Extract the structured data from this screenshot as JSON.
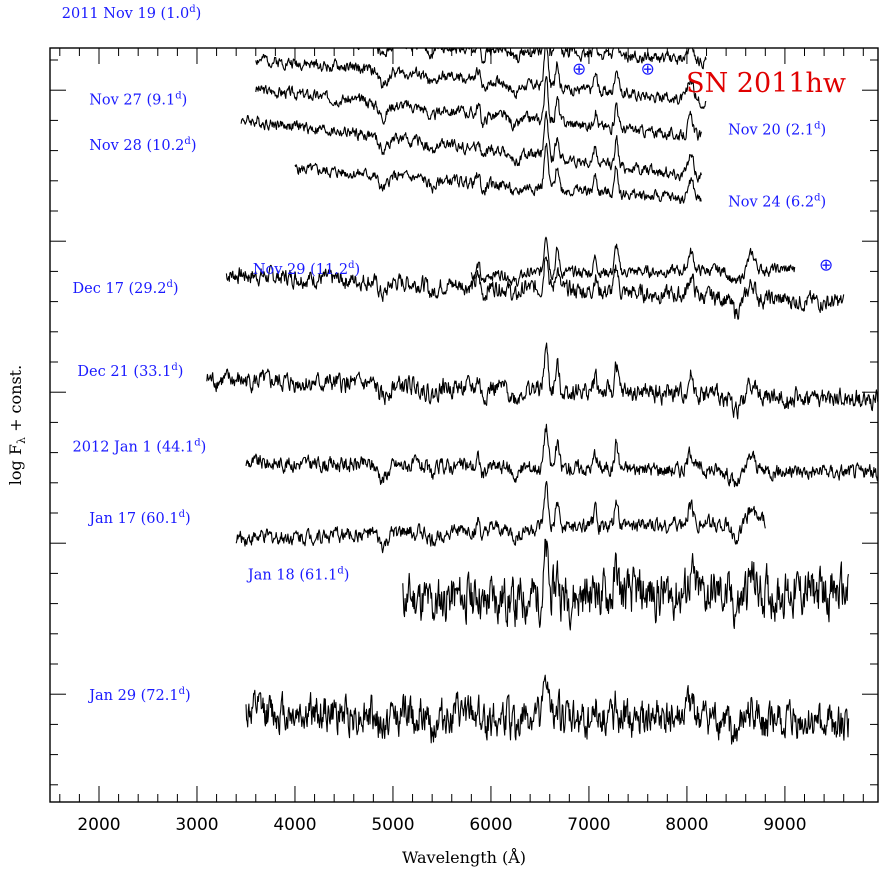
{
  "chart_data": {
    "type": "line",
    "title": "SN 2011hw",
    "xlabel": "Wavelength (Å)",
    "ylabel_main": "log F",
    "ylabel_sub": "λ",
    "ylabel_tail": " + const.",
    "xlim": [
      1500,
      9950
    ],
    "xticks": [
      2000,
      3000,
      4000,
      5000,
      6000,
      7000,
      8000,
      9000
    ],
    "telluric_symbol": "⊕",
    "telluric_marks": [
      {
        "x": 6900,
        "y": 0.965
      },
      {
        "x": 7600,
        "y": 0.965
      },
      {
        "x": 9420,
        "y": 0.705
      }
    ],
    "series": [
      {
        "label": "2011 Nov 19 (1.0",
        "sup": "d",
        "close": ")",
        "label_x": 1620,
        "label_y": 1.04,
        "x_range": [
          3600,
          8200
        ],
        "y0": 1.015,
        "slope": -0.07,
        "noise": 0.012,
        "seed": 1
      },
      {
        "label": "Nov 20 (2.1",
        "sup": "d",
        "close": ")",
        "label_x": 8420,
        "label_y": 0.885,
        "x_range": [
          3600,
          8200
        ],
        "y0": 0.985,
        "slope": -0.12,
        "noise": 0.012,
        "seed": 2
      },
      {
        "label": "Nov 27 (9.1",
        "sup": "d",
        "close": ")",
        "label_x": 1900,
        "label_y": 0.925,
        "x_range": [
          3600,
          8150
        ],
        "y0": 0.945,
        "slope": -0.14,
        "noise": 0.012,
        "seed": 3
      },
      {
        "label": "Nov 28 (10.2",
        "sup": "d",
        "close": ")",
        "label_x": 1900,
        "label_y": 0.865,
        "x_range": [
          3450,
          8150
        ],
        "y0": 0.905,
        "slope": -0.16,
        "noise": 0.012,
        "seed": 4
      },
      {
        "label": "Nov 24 (6.2",
        "sup": "d",
        "close": ")",
        "label_x": 8420,
        "label_y": 0.79,
        "x_range": [
          4000,
          8150
        ],
        "y0": 0.84,
        "slope": -0.1,
        "noise": 0.012,
        "seed": 5
      },
      {
        "label": "Nov 29 (11.2",
        "sup": "d",
        "close": ")",
        "label_x": 3570,
        "label_y": 0.7,
        "x_range": [
          5800,
          9100
        ],
        "y0": 0.7,
        "slope": 0.02,
        "noise": 0.012,
        "seed": 6
      },
      {
        "label": "Dec 17  (29.2",
        "sup": "d",
        "close": ")",
        "label_x": 1730,
        "label_y": 0.675,
        "x_range": [
          3300,
          9600
        ],
        "y0": 0.7,
        "slope": -0.06,
        "noise": 0.018,
        "seed": 7
      },
      {
        "label": "Dec 21 (33.1",
        "sup": "d",
        "close": ")",
        "label_x": 1780,
        "label_y": 0.565,
        "x_range": [
          3100,
          9950
        ],
        "y0": 0.56,
        "slope": -0.04,
        "noise": 0.02,
        "seed": 8
      },
      {
        "label": "2012 Jan 1 (44.1",
        "sup": "d",
        "close": ")",
        "label_x": 1730,
        "label_y": 0.465,
        "x_range": [
          3500,
          9950
        ],
        "y0": 0.45,
        "slope": -0.02,
        "noise": 0.016,
        "seed": 9
      },
      {
        "label": "Jan 17 (60.1",
        "sup": "d",
        "close": ")",
        "label_x": 1900,
        "label_y": 0.37,
        "x_range": [
          3400,
          8800
        ],
        "y0": 0.35,
        "slope": 0.04,
        "noise": 0.016,
        "seed": 10
      },
      {
        "label": "Jan 18 (61.1",
        "sup": "d",
        "close": ")",
        "label_x": 3520,
        "label_y": 0.295,
        "x_range": [
          5100,
          9650
        ],
        "y0": 0.27,
        "slope": 0.02,
        "noise": 0.05,
        "seed": 11
      },
      {
        "label": "Jan 29 (72.1",
        "sup": "d",
        "close": ")",
        "label_x": 1900,
        "label_y": 0.135,
        "x_range": [
          3500,
          9650
        ],
        "y0": 0.12,
        "slope": -0.03,
        "noise": 0.04,
        "seed": 12
      }
    ]
  }
}
